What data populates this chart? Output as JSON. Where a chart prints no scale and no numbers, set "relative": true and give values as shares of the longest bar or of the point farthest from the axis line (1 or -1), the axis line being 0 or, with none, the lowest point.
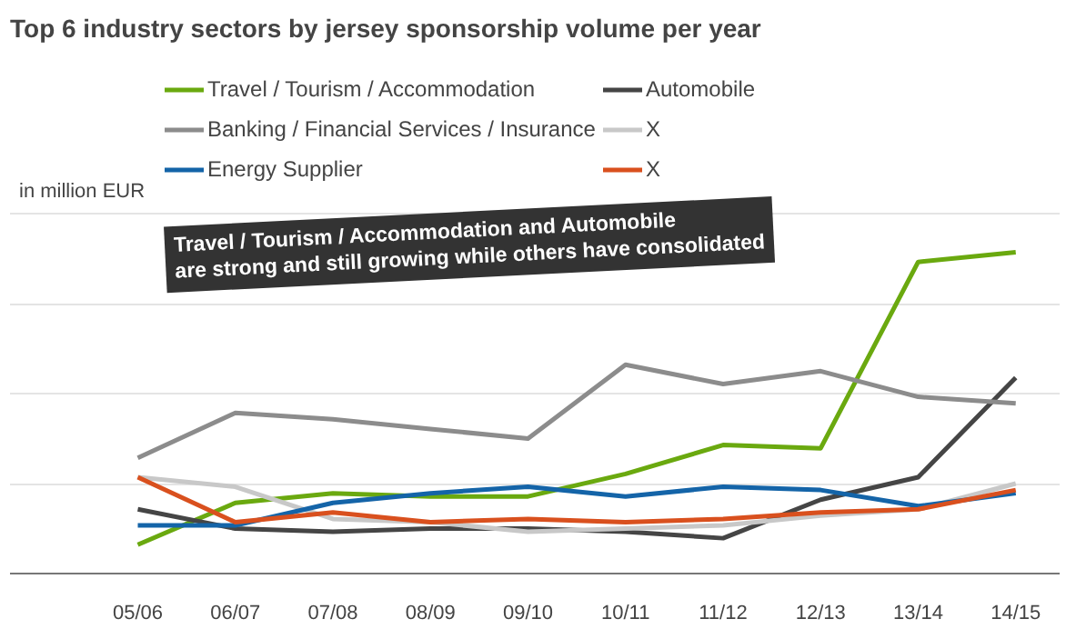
{
  "chart_data": {
    "type": "line",
    "title": "Top 6 industry sectors by jersey sponsorship volume per year",
    "ylabel": "in million EUR",
    "relative": true,
    "grid": "y",
    "legend": "top",
    "categories": [
      "05/06",
      "06/07",
      "07/08",
      "08/09",
      "09/10",
      "10/11",
      "11/12",
      "12/13",
      "13/14",
      "14/15"
    ],
    "series": [
      {
        "name": "Travel / Tourism / Accommodation",
        "color": "#6aa90f",
        "values": [
          0.09,
          0.22,
          0.25,
          0.24,
          0.24,
          0.31,
          0.4,
          0.39,
          0.97,
          1
        ]
      },
      {
        "name": "Automobile",
        "color": "#454545",
        "values": [
          0.2,
          0.14,
          0.13,
          0.14,
          0.14,
          0.13,
          0.11,
          0.23,
          0.3,
          0.61
        ]
      },
      {
        "name": "Banking / Financial Services / Insurance",
        "color": "#8c8c8c",
        "values": [
          0.36,
          0.5,
          0.48,
          0.45,
          0.42,
          0.65,
          0.59,
          0.63,
          0.55,
          0.53
        ]
      },
      {
        "name": "X",
        "color": "#c8c8c8",
        "values": [
          0.3,
          0.27,
          0.17,
          0.16,
          0.13,
          0.14,
          0.15,
          0.18,
          0.2,
          0.28
        ]
      },
      {
        "name": "Energy Supplier",
        "color": "#1464a8",
        "values": [
          0.15,
          0.15,
          0.22,
          0.25,
          0.27,
          0.24,
          0.27,
          0.26,
          0.21,
          0.25
        ]
      },
      {
        "name": "X",
        "color": "#d9501e",
        "values": [
          0.3,
          0.16,
          0.19,
          0.16,
          0.17,
          0.16,
          0.17,
          0.19,
          0.2,
          0.26
        ]
      }
    ],
    "annotations": [
      "Travel / Tourism / Accommodation and Automobile\nare strong and still growing while others have consolidated"
    ]
  }
}
